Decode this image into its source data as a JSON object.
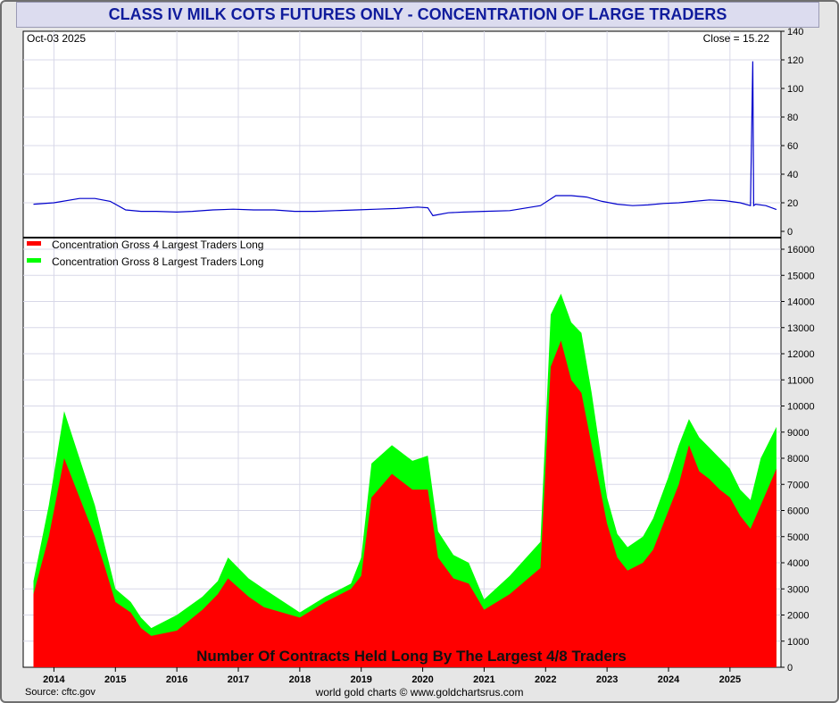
{
  "title": "CLASS IV MILK COTS FUTURES ONLY - CONCENTRATION OF LARGE TRADERS",
  "source": "Source: cftc.gov",
  "credit": "world gold charts © www.goldchartsrus.com",
  "colors": {
    "title_text": "#101c9c",
    "top_line": "#0000cc",
    "gross4": "#ff0000",
    "gross8": "#00ff00"
  },
  "chart_data": [
    {
      "type": "line",
      "date_label": "Oct-03  2025",
      "close_label": "Close = 15.22",
      "ylim": [
        0,
        140
      ],
      "y_ticks": [
        0,
        20,
        40,
        60,
        80,
        100,
        120,
        140
      ],
      "grid": true,
      "x": [
        "2013-09",
        "2014-01",
        "2014-06",
        "2014-09",
        "2014-12",
        "2015-03",
        "2015-06",
        "2015-09",
        "2016-01",
        "2016-04",
        "2016-08",
        "2016-12",
        "2017-04",
        "2017-08",
        "2017-12",
        "2018-04",
        "2018-08",
        "2018-12",
        "2019-04",
        "2019-08",
        "2019-12",
        "2020-02",
        "2020-03",
        "2020-06",
        "2020-09",
        "2021-01",
        "2021-06",
        "2021-12",
        "2022-03",
        "2022-06",
        "2022-09",
        "2022-12",
        "2023-03",
        "2023-06",
        "2023-09",
        "2023-12",
        "2024-03",
        "2024-06",
        "2024-09",
        "2024-12",
        "2025-03",
        "2025-05",
        "2025-05-15",
        "2025-05-20",
        "2025-06",
        "2025-08",
        "2025-10-03"
      ],
      "values": [
        19,
        20,
        23,
        23,
        21,
        15,
        14,
        14,
        13.5,
        14,
        15,
        15.5,
        15,
        15,
        14,
        14,
        14.5,
        15,
        15.5,
        16,
        17,
        16.5,
        11,
        13,
        13.5,
        14,
        14.5,
        18,
        25,
        25,
        24,
        21,
        19,
        18,
        18.5,
        19.5,
        20,
        21,
        22,
        21.5,
        20,
        18,
        119,
        18,
        19,
        18,
        15.22
      ]
    },
    {
      "type": "area",
      "title": "Number Of Contracts Held Long By The Largest 4/8 Traders",
      "ylim": [
        0,
        16000
      ],
      "y_ticks": [
        0,
        1000,
        2000,
        3000,
        4000,
        5000,
        6000,
        7000,
        8000,
        9000,
        10000,
        11000,
        12000,
        13000,
        14000,
        15000,
        16000
      ],
      "x_tick_labels": [
        "2014",
        "2015",
        "2016",
        "2017",
        "2018",
        "2019",
        "2020",
        "2021",
        "2022",
        "2023",
        "2024",
        "2025"
      ],
      "legend_position": "top-left",
      "grid": true,
      "x": [
        "2013-09",
        "2013-12",
        "2014-03",
        "2014-06",
        "2014-09",
        "2014-11",
        "2015-01",
        "2015-04",
        "2015-06",
        "2015-08",
        "2016-01",
        "2016-06",
        "2016-09",
        "2016-11",
        "2017-03",
        "2017-06",
        "2018-01",
        "2018-06",
        "2018-11",
        "2019-01",
        "2019-03",
        "2019-07",
        "2019-11",
        "2020-02",
        "2020-04",
        "2020-07",
        "2020-10",
        "2021-01",
        "2021-06",
        "2021-12",
        "2022-02",
        "2022-04",
        "2022-06",
        "2022-08",
        "2022-10",
        "2023-01",
        "2023-03",
        "2023-05",
        "2023-08",
        "2023-10",
        "2024-01",
        "2024-03",
        "2024-05",
        "2024-07",
        "2024-09",
        "2024-11",
        "2025-01",
        "2025-03",
        "2025-05",
        "2025-07",
        "2025-10-03"
      ],
      "series": [
        {
          "name": "Concentration Gross 4 Largest Traders Long",
          "values": [
            2800,
            5000,
            8000,
            6500,
            5000,
            3800,
            2500,
            2100,
            1500,
            1200,
            1400,
            2200,
            2800,
            3400,
            2700,
            2300,
            1900,
            2500,
            3000,
            3500,
            6500,
            7400,
            6800,
            6800,
            4200,
            3400,
            3200,
            2200,
            2800,
            3800,
            11500,
            12500,
            11000,
            10500,
            8500,
            5500,
            4200,
            3700,
            4000,
            4500,
            6000,
            7000,
            8500,
            7500,
            7200,
            6800,
            6500,
            5800,
            5300,
            6200,
            7600
          ]
        },
        {
          "name": "Concentration Gross 8 Largest Traders Long",
          "values": [
            3300,
            6200,
            9800,
            8000,
            6200,
            4600,
            3000,
            2500,
            1900,
            1500,
            2000,
            2700,
            3300,
            4200,
            3400,
            3000,
            2100,
            2700,
            3200,
            4200,
            7800,
            8500,
            7900,
            8100,
            5200,
            4300,
            4000,
            2600,
            3500,
            4800,
            13500,
            14300,
            13200,
            12800,
            10500,
            6500,
            5100,
            4600,
            5000,
            5700,
            7300,
            8500,
            9500,
            8800,
            8400,
            8000,
            7600,
            6800,
            6400,
            8000,
            9200
          ]
        }
      ]
    }
  ]
}
